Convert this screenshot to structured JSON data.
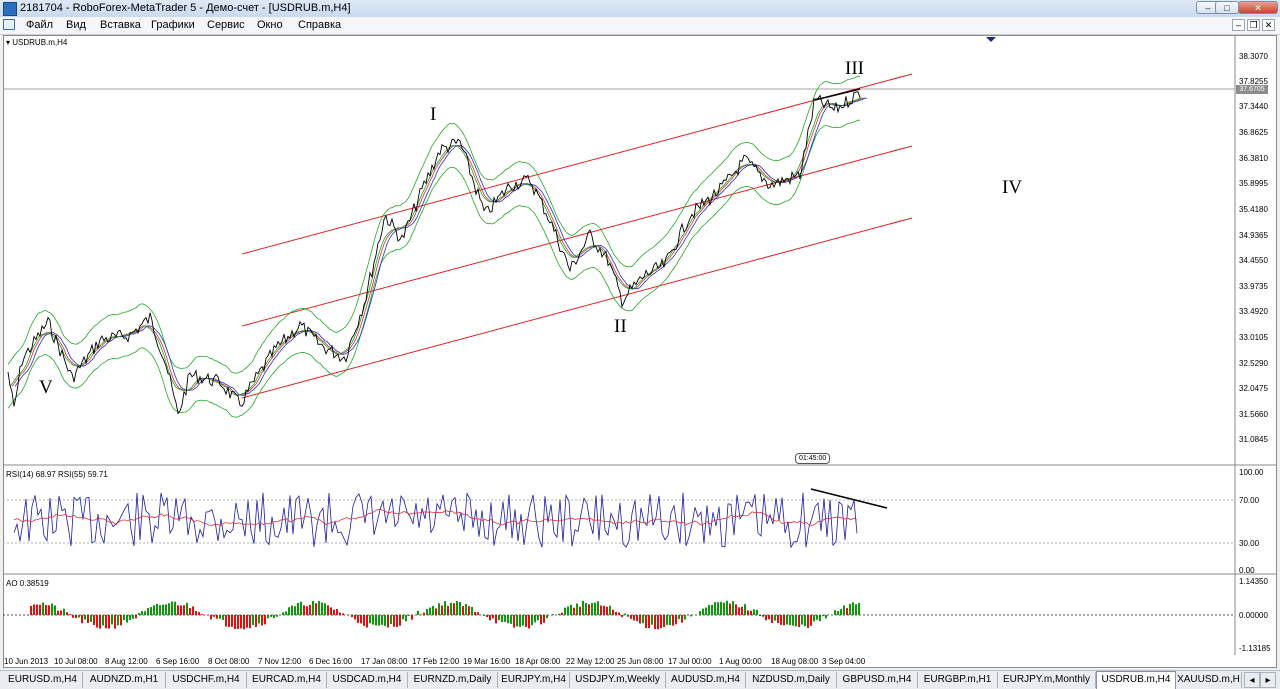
{
  "window": {
    "title": "2181704 - RoboForex-MetaTrader 5 - Демо-счет - [USDRUB.m,H4]",
    "minimize": "–",
    "maximize": "□",
    "close": "✕"
  },
  "menu": {
    "items": [
      "Файл",
      "Вид",
      "Вставка",
      "Графики",
      "Сервис",
      "Окно",
      "Справка"
    ],
    "mdi_min": "–",
    "mdi_restore": "❐",
    "mdi_close": "✕"
  },
  "chart": {
    "symbol_label": "USDRUB.m,H4",
    "current_price": "37.6705",
    "time_marker": "01:45:00",
    "price_axis": [
      "38.3070",
      "37.8255",
      "37.3440",
      "36.8625",
      "36.3810",
      "35.8995",
      "35.4180",
      "34.9365",
      "34.4550",
      "33.9735",
      "33.4920",
      "33.0105",
      "32.5290",
      "32.0475",
      "31.5660",
      "31.0845"
    ],
    "wave_labels": [
      "V",
      "I",
      "II",
      "III",
      "IV"
    ],
    "date_axis": [
      "10 Jun 2013",
      "10 Jul 08:00",
      "8 Aug 12:00",
      "6 Sep 16:00",
      "8 Oct 08:00",
      "7 Nov 12:00",
      "6 Dec 16:00",
      "17 Jan 08:00",
      "17 Feb 12:00",
      "19 Mar 16:00",
      "18 Apr 08:00",
      "22 May 12:00",
      "25 Jun 08:00",
      "17 Jul 00:00",
      "1 Aug 00:00",
      "18 Aug 08:00",
      "3 Sep 04:00"
    ]
  },
  "rsi": {
    "label": "RSI(14) 68.97 RSI(55) 59.71",
    "axis": [
      "100.00",
      "70.00",
      "30.00",
      "0.00"
    ]
  },
  "ao": {
    "label": "AO 0.38519",
    "axis": [
      "1.14350",
      "0.00000",
      "-1.13185"
    ]
  },
  "tabs": [
    "EURUSD.m,H4",
    "AUDNZD.m,H1",
    "USDCHF.m,H4",
    "EURCAD.m,H4",
    "USDCAD.m,H4",
    "EURNZD.m,Daily",
    "EURJPY.m,H4",
    "USDJPY.m,Weekly",
    "AUDUSD.m,H4",
    "NZDUSD.m,Daily",
    "GBPUSD.m,H4",
    "EURGBP.m,H1",
    "EURJPY.m,Monthly",
    "USDRUB.m,H4",
    "XAUUSD.m,H"
  ],
  "active_tab": "USDRUB.m,H4",
  "colors": {
    "channel": "#e02020",
    "price": "#000000",
    "bands": "#22aa22",
    "rsi_fast": "#1a1aa8",
    "rsi_slow": "#e03030",
    "ao_up": "#0a9a0a",
    "ao_down": "#e01010"
  }
}
